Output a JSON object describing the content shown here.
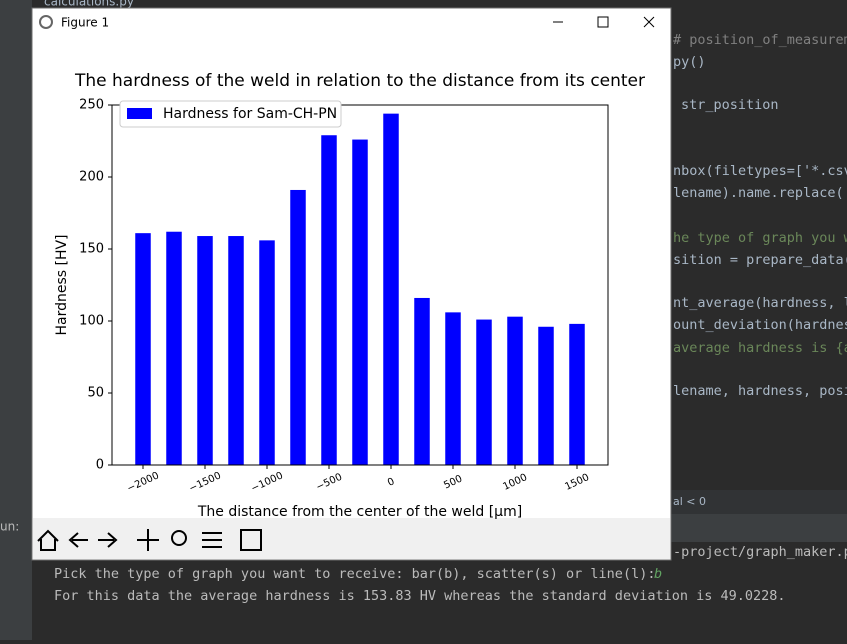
{
  "window": {
    "title": "Figure 1"
  },
  "ide": {
    "tab": "calculations.py",
    "code": [
      "# position_of_measurem",
      "py()",
      "str_position",
      "nbox(filetypes=['*.csv",
      "lename).name.replace('",
      "he type of graph you w",
      "sition = prepare_data(",
      "nt_average(hardness, l",
      "ount_deviation(hardnes",
      "average hardness is {a",
      "lename, hardness, posi"
    ],
    "breadcrumb": "al < 0",
    "run_label": "un:",
    "console": {
      "path": "-project/graph_maker.p",
      "prompt": "Pick the type of graph you want to receive: bar(b), scatter(s) or line(l):",
      "answer": "b",
      "result": "For this data the average hardness is 153.83 HV whereas the standard deviation is 49.0228."
    }
  },
  "chart_data": {
    "type": "bar",
    "title": "The hardness of the weld in relation to the distance from its center",
    "xlabel": "The distance from the center of the weld [μm]",
    "ylabel": "Hardness [HV]",
    "x": [
      -2000,
      -1750,
      -1500,
      -1250,
      -1000,
      -750,
      -500,
      -250,
      0,
      250,
      500,
      750,
      1000,
      1250,
      1500
    ],
    "series": [
      {
        "name": "Hardness for Sam-CH-PN",
        "color": "#0000ff",
        "values": [
          161,
          162,
          159,
          159,
          156,
          191,
          229,
          226,
          244,
          116,
          106,
          101,
          103,
          96,
          98
        ]
      }
    ],
    "xlim": [
      -2250,
      1750
    ],
    "xticks": [
      {
        "value": -2000,
        "label": "−2000"
      },
      {
        "value": -1500,
        "label": "−1500"
      },
      {
        "value": -1000,
        "label": "−1000"
      },
      {
        "value": -500,
        "label": "−500"
      },
      0,
      500,
      1000,
      1500
    ],
    "ylim": [
      0,
      250
    ],
    "yticks": [
      0,
      50,
      100,
      150,
      200,
      250
    ],
    "legend": "upper left",
    "grid": false
  }
}
